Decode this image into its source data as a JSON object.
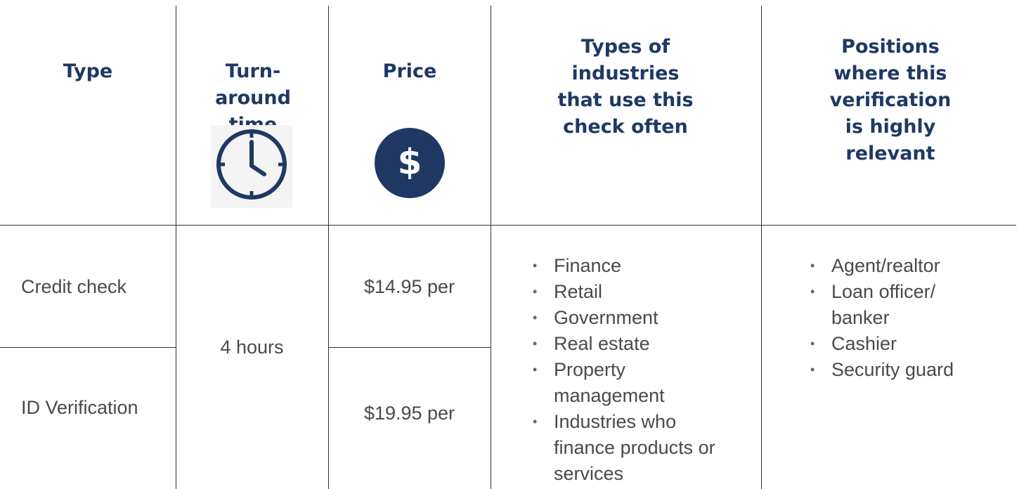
{
  "header": [
    {
      "lines": [
        "Type"
      ]
    },
    {
      "lines": [
        "Turn-",
        "around",
        "time"
      ]
    },
    {
      "lines": [
        "Price"
      ]
    },
    {
      "lines": [
        "Types of",
        "industries",
        "that use this",
        "check often"
      ]
    },
    {
      "lines": [
        "Positions",
        "where this",
        "verification",
        "is highly",
        "relevant"
      ]
    }
  ],
  "table": {
    "types": [
      "Credit check",
      "ID Verification"
    ],
    "turnaround": "4 hours",
    "prices": [
      "$14.95 per",
      "$19.95 per"
    ],
    "industries": [
      "Finance",
      "Retail",
      "Government",
      "Real estate",
      "Property management",
      "Industries who finance products or services"
    ],
    "positions": [
      "Agent/realtor",
      "Loan officer/ banker",
      "Cashier",
      "Security guard"
    ]
  }
}
